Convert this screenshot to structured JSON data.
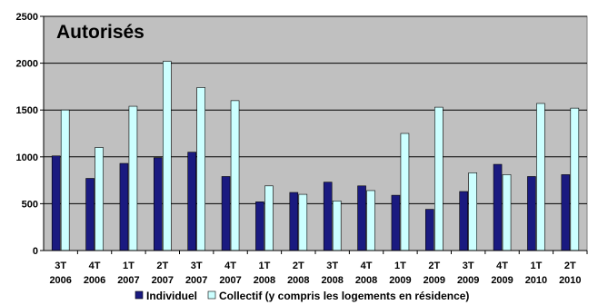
{
  "chart_data": {
    "type": "bar",
    "title": "Autorisés",
    "categories": [
      [
        "3T",
        "2006"
      ],
      [
        "4T",
        "2006"
      ],
      [
        "1T",
        "2007"
      ],
      [
        "2T",
        "2007"
      ],
      [
        "3T",
        "2007"
      ],
      [
        "4T",
        "2007"
      ],
      [
        "1T",
        "2008"
      ],
      [
        "2T",
        "2008"
      ],
      [
        "3T",
        "2008"
      ],
      [
        "4T",
        "2008"
      ],
      [
        "1T",
        "2009"
      ],
      [
        "2T",
        "2009"
      ],
      [
        "3T",
        "2009"
      ],
      [
        "4T",
        "2009"
      ],
      [
        "1T",
        "2010"
      ],
      [
        "2T",
        "2010"
      ]
    ],
    "series": [
      {
        "name": "Individuel",
        "color": "#1a1a80",
        "values": [
          1010,
          770,
          930,
          990,
          1050,
          790,
          520,
          620,
          730,
          690,
          590,
          440,
          630,
          920,
          790,
          810
        ]
      },
      {
        "name": "Collectif (y compris les logements en résidence)",
        "color": "#ccffff",
        "values": [
          1500,
          1100,
          1540,
          2020,
          1740,
          1600,
          690,
          600,
          530,
          640,
          1250,
          1530,
          830,
          810,
          1570,
          1520
        ]
      }
    ],
    "ylim": [
      0,
      2500
    ],
    "yticks": [
      0,
      500,
      1000,
      1500,
      2000,
      2500
    ],
    "grid": true,
    "plot_background": "#c0c0c0",
    "legend_position": "bottom"
  }
}
